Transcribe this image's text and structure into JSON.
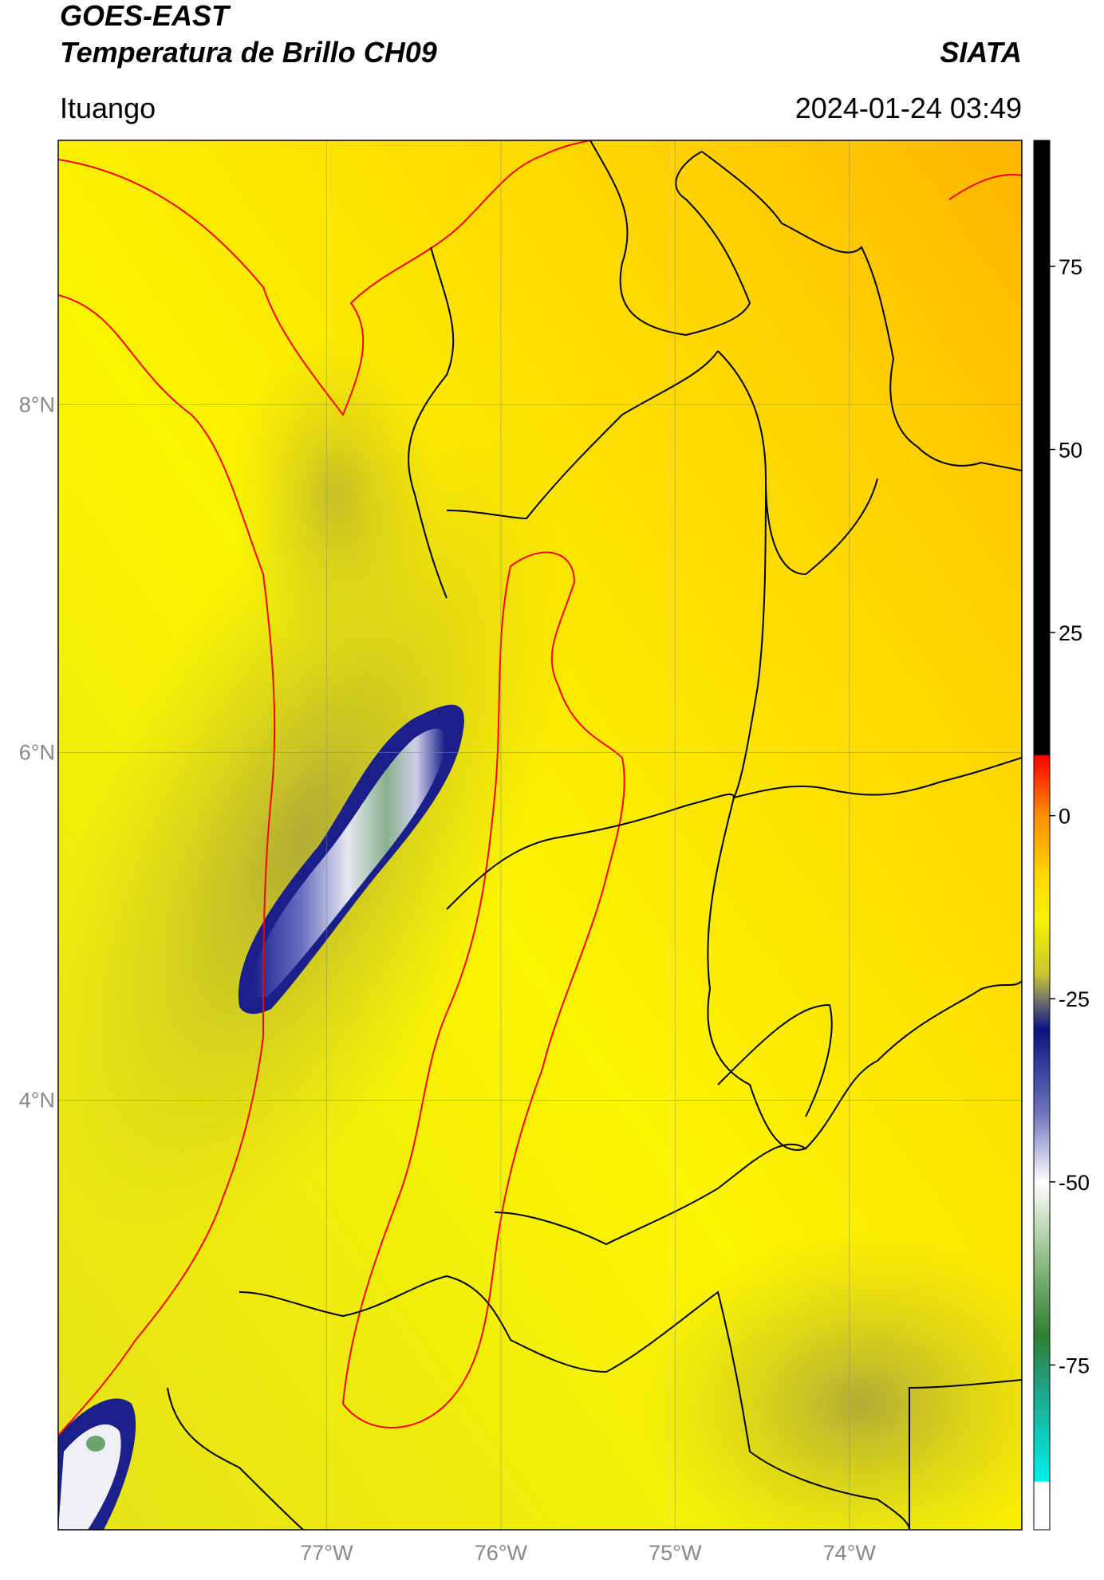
{
  "header": {
    "title": "GOES-EAST",
    "subtitle": "Temperatura de Brillo CH09",
    "source": "SIATA",
    "location": "Ituango",
    "datetime": "2024-01-24 03:49"
  },
  "map": {
    "lon_lim": [
      -78.54,
      -73.01
    ],
    "lat_lim": [
      1.53,
      9.52
    ],
    "lat_ticks": [
      {
        "value": 8,
        "label": "8°N"
      },
      {
        "value": 6,
        "label": "6°N"
      },
      {
        "value": 4,
        "label": "4°N"
      }
    ],
    "lon_ticks": [
      {
        "value": -77,
        "label": "77°W"
      },
      {
        "value": -76,
        "label": "76°W"
      },
      {
        "value": -75,
        "label": "75°W"
      },
      {
        "value": -74,
        "label": "74°W"
      }
    ],
    "grid": true
  },
  "colorbar": {
    "lim": [
      -97.5,
      92.2
    ],
    "ticks": [
      75,
      50,
      25,
      0,
      -25,
      -50,
      -75
    ]
  }
}
